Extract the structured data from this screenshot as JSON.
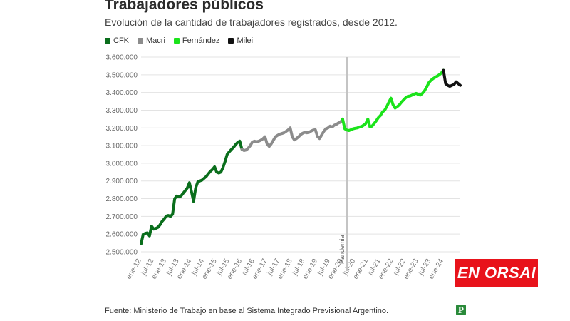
{
  "title": "Trabajadores públicos",
  "subtitle": "Evolución de la cantidad de trabajadores registrados, desde 2012.",
  "source": "Fuente: Ministerio de Trabajo en base al Sistema Integrado Previsional Argentino.",
  "brand": "EN ORSAI",
  "publisher_logo": "P",
  "chart_data": {
    "type": "line",
    "title": "Trabajadores públicos",
    "subtitle": "Evolución de la cantidad de trabajadores registrados, desde 2012.",
    "xlabel": "",
    "ylabel": "",
    "grid": "horizontal",
    "legend": "top-left",
    "ylim": [
      2500000,
      3600000
    ],
    "y_ticks": [
      2500000,
      2600000,
      2700000,
      2800000,
      2900000,
      3000000,
      3100000,
      3200000,
      3300000,
      3400000,
      3500000,
      3600000
    ],
    "y_tick_labels": [
      "2.500.000",
      "2.600.000",
      "2.700.000",
      "2.800.000",
      "2.900.000",
      "3.000.000",
      "3.100.000",
      "3.200.000",
      "3.300.000",
      "3.400.000",
      "3.500.000",
      "3.600.000"
    ],
    "x_tick_labels": [
      "ene-12",
      "jul-12",
      "ene-13",
      "jul-13",
      "ene-14",
      "jul-14",
      "ene-15",
      "jul-15",
      "ene-16",
      "jul-16",
      "ene-17",
      "jul-17",
      "ene-18",
      "jul-18",
      "ene-19",
      "jul-19",
      "ene-20",
      "jul-20",
      "ene-21",
      "jul-21",
      "ene-22",
      "jul-22",
      "ene-23",
      "jul-23",
      "ene-24"
    ],
    "annotation": {
      "label": "Pandemia",
      "x": "2020-03"
    },
    "series": [
      {
        "name": "CFK",
        "color": "#0a6e1c",
        "points": [
          [
            "2012-01",
            2545000
          ],
          [
            "2012-02",
            2598000
          ],
          [
            "2012-03",
            2604000
          ],
          [
            "2012-04",
            2607000
          ],
          [
            "2012-05",
            2590000
          ],
          [
            "2012-06",
            2645000
          ],
          [
            "2012-07",
            2628000
          ],
          [
            "2012-08",
            2632000
          ],
          [
            "2012-09",
            2638000
          ],
          [
            "2012-10",
            2652000
          ],
          [
            "2012-11",
            2672000
          ],
          [
            "2012-12",
            2685000
          ],
          [
            "2013-01",
            2702000
          ],
          [
            "2013-02",
            2705000
          ],
          [
            "2013-03",
            2700000
          ],
          [
            "2013-04",
            2712000
          ],
          [
            "2013-05",
            2800000
          ],
          [
            "2013-06",
            2815000
          ],
          [
            "2013-07",
            2810000
          ],
          [
            "2013-08",
            2815000
          ],
          [
            "2013-09",
            2830000
          ],
          [
            "2013-10",
            2845000
          ],
          [
            "2013-11",
            2860000
          ],
          [
            "2013-12",
            2890000
          ],
          [
            "2014-01",
            2840000
          ],
          [
            "2014-02",
            2785000
          ],
          [
            "2014-03",
            2860000
          ],
          [
            "2014-04",
            2895000
          ],
          [
            "2014-05",
            2900000
          ],
          [
            "2014-06",
            2905000
          ],
          [
            "2014-07",
            2915000
          ],
          [
            "2014-08",
            2925000
          ],
          [
            "2014-09",
            2940000
          ],
          [
            "2014-10",
            2955000
          ],
          [
            "2014-11",
            2965000
          ],
          [
            "2014-12",
            2980000
          ],
          [
            "2015-01",
            2950000
          ],
          [
            "2015-02",
            2945000
          ],
          [
            "2015-03",
            2950000
          ],
          [
            "2015-04",
            2975000
          ],
          [
            "2015-05",
            3010000
          ],
          [
            "2015-06",
            3050000
          ],
          [
            "2015-07",
            3065000
          ],
          [
            "2015-08",
            3078000
          ],
          [
            "2015-09",
            3090000
          ],
          [
            "2015-10",
            3105000
          ],
          [
            "2015-11",
            3118000
          ],
          [
            "2015-12",
            3125000
          ]
        ]
      },
      {
        "name": "Macri",
        "color": "#8c8c8c",
        "points": [
          [
            "2016-01",
            3080000
          ],
          [
            "2016-02",
            3072000
          ],
          [
            "2016-03",
            3075000
          ],
          [
            "2016-04",
            3085000
          ],
          [
            "2016-05",
            3100000
          ],
          [
            "2016-06",
            3120000
          ],
          [
            "2016-07",
            3125000
          ],
          [
            "2016-08",
            3122000
          ],
          [
            "2016-09",
            3125000
          ],
          [
            "2016-10",
            3130000
          ],
          [
            "2016-11",
            3138000
          ],
          [
            "2016-12",
            3150000
          ],
          [
            "2017-01",
            3110000
          ],
          [
            "2017-02",
            3095000
          ],
          [
            "2017-03",
            3110000
          ],
          [
            "2017-04",
            3130000
          ],
          [
            "2017-05",
            3150000
          ],
          [
            "2017-06",
            3158000
          ],
          [
            "2017-07",
            3165000
          ],
          [
            "2017-08",
            3168000
          ],
          [
            "2017-09",
            3172000
          ],
          [
            "2017-10",
            3180000
          ],
          [
            "2017-11",
            3188000
          ],
          [
            "2017-12",
            3200000
          ],
          [
            "2018-01",
            3150000
          ],
          [
            "2018-02",
            3132000
          ],
          [
            "2018-03",
            3140000
          ],
          [
            "2018-04",
            3150000
          ],
          [
            "2018-05",
            3162000
          ],
          [
            "2018-06",
            3170000
          ],
          [
            "2018-07",
            3175000
          ],
          [
            "2018-08",
            3172000
          ],
          [
            "2018-09",
            3175000
          ],
          [
            "2018-10",
            3182000
          ],
          [
            "2018-11",
            3188000
          ],
          [
            "2018-12",
            3190000
          ],
          [
            "2019-01",
            3152000
          ],
          [
            "2019-02",
            3140000
          ],
          [
            "2019-03",
            3160000
          ],
          [
            "2019-04",
            3180000
          ],
          [
            "2019-05",
            3195000
          ],
          [
            "2019-06",
            3200000
          ],
          [
            "2019-07",
            3210000
          ],
          [
            "2019-08",
            3205000
          ],
          [
            "2019-09",
            3215000
          ],
          [
            "2019-10",
            3220000
          ],
          [
            "2019-11",
            3228000
          ],
          [
            "2019-12",
            3232000
          ]
        ]
      },
      {
        "name": "Fernández",
        "color": "#1be31b",
        "points": [
          [
            "2020-01",
            3250000
          ],
          [
            "2020-02",
            3195000
          ],
          [
            "2020-03",
            3188000
          ],
          [
            "2020-04",
            3185000
          ],
          [
            "2020-05",
            3190000
          ],
          [
            "2020-06",
            3195000
          ],
          [
            "2020-07",
            3198000
          ],
          [
            "2020-08",
            3200000
          ],
          [
            "2020-09",
            3205000
          ],
          [
            "2020-10",
            3208000
          ],
          [
            "2020-11",
            3215000
          ],
          [
            "2020-12",
            3225000
          ],
          [
            "2021-01",
            3250000
          ],
          [
            "2021-02",
            3205000
          ],
          [
            "2021-03",
            3210000
          ],
          [
            "2021-04",
            3225000
          ],
          [
            "2021-05",
            3240000
          ],
          [
            "2021-06",
            3258000
          ],
          [
            "2021-07",
            3270000
          ],
          [
            "2021-08",
            3290000
          ],
          [
            "2021-09",
            3300000
          ],
          [
            "2021-10",
            3320000
          ],
          [
            "2021-11",
            3345000
          ],
          [
            "2021-12",
            3368000
          ],
          [
            "2022-01",
            3330000
          ],
          [
            "2022-02",
            3312000
          ],
          [
            "2022-03",
            3320000
          ],
          [
            "2022-04",
            3330000
          ],
          [
            "2022-05",
            3345000
          ],
          [
            "2022-06",
            3358000
          ],
          [
            "2022-07",
            3370000
          ],
          [
            "2022-08",
            3378000
          ],
          [
            "2022-09",
            3380000
          ],
          [
            "2022-10",
            3385000
          ],
          [
            "2022-11",
            3390000
          ],
          [
            "2022-12",
            3395000
          ],
          [
            "2023-01",
            3388000
          ],
          [
            "2023-02",
            3385000
          ],
          [
            "2023-03",
            3395000
          ],
          [
            "2023-04",
            3410000
          ],
          [
            "2023-05",
            3430000
          ],
          [
            "2023-06",
            3455000
          ],
          [
            "2023-07",
            3468000
          ],
          [
            "2023-08",
            3478000
          ],
          [
            "2023-09",
            3485000
          ],
          [
            "2023-10",
            3492000
          ],
          [
            "2023-11",
            3500000
          ],
          [
            "2023-12",
            3510000
          ]
        ]
      },
      {
        "name": "Milei",
        "color": "#111111",
        "points": [
          [
            "2024-01",
            3525000
          ],
          [
            "2024-02",
            3450000
          ],
          [
            "2024-03",
            3440000
          ],
          [
            "2024-04",
            3435000
          ],
          [
            "2024-05",
            3440000
          ],
          [
            "2024-06",
            3445000
          ],
          [
            "2024-07",
            3460000
          ],
          [
            "2024-08",
            3450000
          ],
          [
            "2024-09",
            3440000
          ]
        ]
      }
    ]
  }
}
